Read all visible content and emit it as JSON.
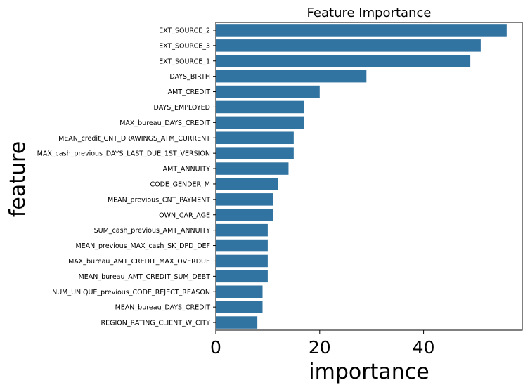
{
  "chart_data": {
    "type": "bar",
    "orientation": "horizontal",
    "title": "Feature Importance",
    "xlabel": "importance",
    "ylabel": "feature",
    "xlim": [
      0,
      59
    ],
    "x_ticks": [
      0,
      20,
      40
    ],
    "grid": false,
    "bar_color": "#3274a1",
    "categories": [
      "EXT_SOURCE_2",
      "EXT_SOURCE_3",
      "EXT_SOURCE_1",
      "DAYS_BIRTH",
      "AMT_CREDIT",
      "DAYS_EMPLOYED",
      "MAX_bureau_DAYS_CREDIT",
      "MEAN_credit_CNT_DRAWINGS_ATM_CURRENT",
      "MAX_cash_previous_DAYS_LAST_DUE_1ST_VERSION",
      "AMT_ANNUITY",
      "CODE_GENDER_M",
      "MEAN_previous_CNT_PAYMENT",
      "OWN_CAR_AGE",
      "SUM_cash_previous_AMT_ANNUITY",
      "MEAN_previous_MAX_cash_SK_DPD_DEF",
      "MAX_bureau_AMT_CREDIT_MAX_OVERDUE",
      "MEAN_bureau_AMT_CREDIT_SUM_DEBT",
      "NUM_UNIQUE_previous_CODE_REJECT_REASON",
      "MEAN_bureau_DAYS_CREDIT",
      "REGION_RATING_CLIENT_W_CITY"
    ],
    "values": [
      56,
      51,
      49,
      29,
      20,
      17,
      17,
      15,
      15,
      14,
      12,
      11,
      11,
      10,
      10,
      10,
      10,
      9,
      9,
      8
    ]
  }
}
